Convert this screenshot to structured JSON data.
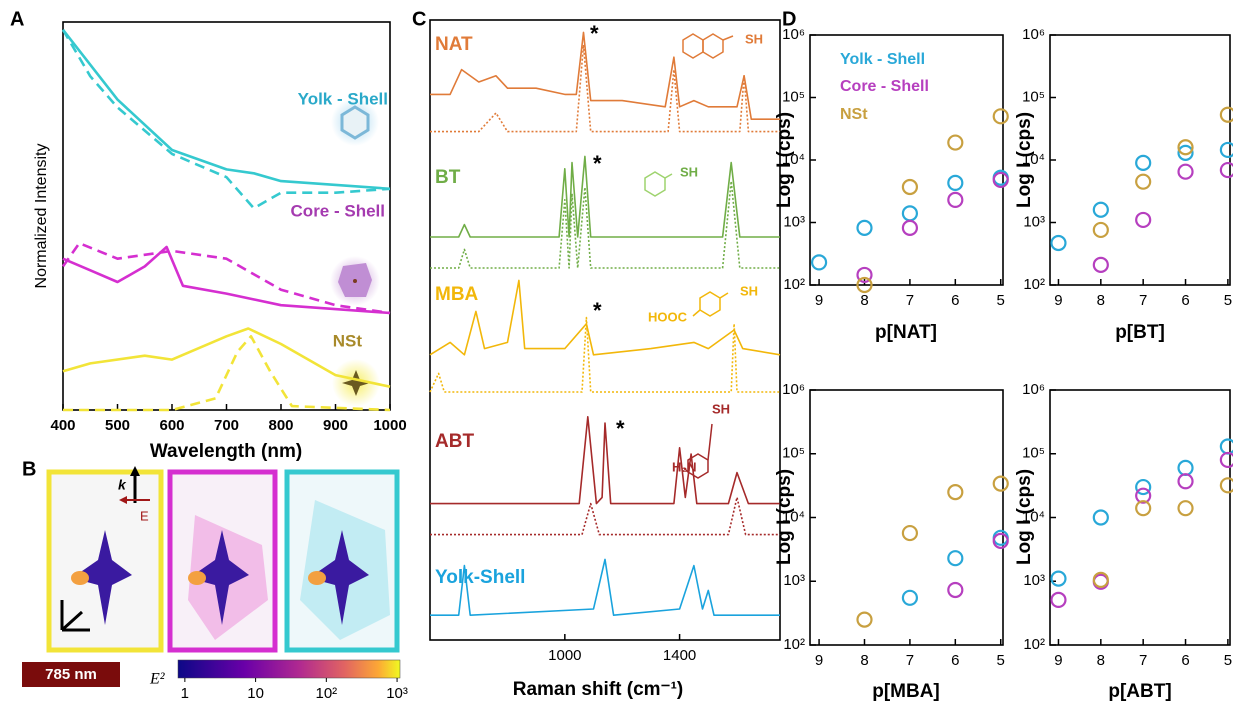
{
  "chart_data": [
    {
      "type": "line",
      "panel_label": "A",
      "xlabel": "Wavelength (nm)",
      "ylabel": "Normalized Intensity",
      "xlim": [
        400,
        1000
      ],
      "xticks": [
        400,
        500,
        600,
        700,
        800,
        900,
        1000
      ],
      "ylim": [
        0,
        100
      ],
      "annotations": [
        {
          "text": "Yolk - Shell",
          "color": "#2aa9c9"
        },
        {
          "text": "Core - Shell",
          "color": "#a53bb0"
        },
        {
          "text": "NSt",
          "color": "#a88a2a"
        }
      ],
      "series": [
        {
          "color": "#35c9cf",
          "dash": false,
          "x": [
            400,
            500,
            600,
            700,
            750,
            800,
            1000
          ],
          "values": [
            98,
            80,
            67,
            62,
            61,
            59,
            57
          ]
        },
        {
          "color": "#35c9cf",
          "dash": true,
          "x": [
            400,
            450,
            500,
            600,
            700,
            750,
            800,
            900,
            1000
          ],
          "values": [
            98,
            86,
            78,
            66,
            60,
            52,
            56,
            56,
            57
          ]
        },
        {
          "color": "#d52fd0",
          "dash": false,
          "x": [
            400,
            450,
            500,
            550,
            590,
            620,
            700,
            800,
            1000
          ],
          "values": [
            39,
            36,
            33,
            37,
            42,
            32,
            30,
            27,
            25
          ]
        },
        {
          "color": "#d52fd0",
          "dash": true,
          "x": [
            400,
            430,
            500,
            600,
            700,
            800,
            900,
            1000
          ],
          "values": [
            37,
            43,
            39,
            41,
            39,
            31,
            27,
            25
          ]
        },
        {
          "color": "#f2e438",
          "dash": false,
          "x": [
            400,
            450,
            550,
            600,
            700,
            740,
            800,
            900,
            1000
          ],
          "values": [
            10,
            12,
            14,
            13,
            19,
            21,
            17,
            9,
            6
          ]
        },
        {
          "color": "#f2e438",
          "dash": true,
          "x": [
            400,
            600,
            680,
            720,
            745,
            780,
            820,
            1000
          ],
          "values": [
            0,
            0,
            3,
            15,
            19,
            10,
            1,
            0
          ]
        }
      ]
    },
    {
      "type": "line",
      "panel_label": "C",
      "xlabel": "Raman shift (cm⁻¹)",
      "xlim": [
        530,
        1750
      ],
      "xticks": [
        1000,
        1400
      ],
      "ylim": [
        0,
        100
      ],
      "annotations": [
        "*",
        "*",
        "*",
        "*",
        "SH",
        "SH",
        "SH",
        "HOOC",
        "SH",
        "H₂N"
      ],
      "series": [
        {
          "name": "NAT",
          "color": "#e07b39",
          "dash": false,
          "x": [
            530,
            600,
            640,
            700,
            760,
            800,
            900,
            1000,
            1040,
            1065,
            1090,
            1200,
            1350,
            1380,
            1400,
            1450,
            1500,
            1580,
            1600,
            1625,
            1650,
            1750
          ],
          "values": [
            88,
            88,
            92,
            90,
            91,
            89,
            89,
            88,
            88,
            98,
            87,
            87,
            86,
            94,
            86,
            87,
            86,
            86,
            86,
            91,
            84,
            84
          ]
        },
        {
          "color": "#e07b39",
          "dash": true,
          "x": [
            530,
            700,
            760,
            800,
            1000,
            1040,
            1065,
            1090,
            1300,
            1360,
            1380,
            1400,
            1580,
            1610,
            1625,
            1640,
            1750
          ],
          "values": [
            82,
            82,
            85,
            82,
            82,
            82,
            96,
            82,
            82,
            82,
            92,
            82,
            82,
            82,
            91,
            82,
            82
          ]
        },
        {
          "name": "BT",
          "color": "#70ad47",
          "dash": false,
          "x": [
            530,
            630,
            650,
            670,
            980,
            1000,
            1015,
            1025,
            1045,
            1070,
            1090,
            1550,
            1580,
            1610,
            1750
          ],
          "values": [
            65,
            65,
            67,
            65,
            65,
            76,
            65,
            77,
            65,
            78,
            65,
            65,
            77,
            65,
            65
          ]
        },
        {
          "color": "#70ad47",
          "dash": true,
          "x": [
            530,
            630,
            650,
            670,
            980,
            1000,
            1015,
            1025,
            1045,
            1070,
            1090,
            1550,
            1580,
            1610,
            1750
          ],
          "values": [
            60,
            60,
            63,
            60,
            60,
            71,
            60,
            72,
            60,
            73,
            60,
            60,
            74,
            60,
            60
          ]
        },
        {
          "name": "MBA",
          "color": "#f2b70a",
          "dash": false,
          "x": [
            530,
            600,
            650,
            690,
            720,
            800,
            840,
            860,
            900,
            1000,
            1075,
            1100,
            1300,
            1450,
            1500,
            1590,
            1620,
            1750
          ],
          "values": [
            46,
            48,
            46,
            53,
            47,
            48,
            58,
            47,
            47,
            47,
            51,
            46,
            47,
            48,
            47,
            50,
            47,
            46
          ]
        },
        {
          "color": "#f2b70a",
          "dash": true,
          "x": [
            530,
            560,
            580,
            700,
            1060,
            1075,
            1090,
            1500,
            1580,
            1590,
            1600,
            1750
          ],
          "values": [
            40,
            43,
            40,
            40,
            40,
            52,
            40,
            40,
            40,
            51,
            40,
            40
          ]
        },
        {
          "name": "ABT",
          "color": "#a52a2a",
          "dash": false,
          "x": [
            530,
            900,
            1050,
            1080,
            1110,
            1130,
            1140,
            1160,
            1380,
            1400,
            1420,
            1440,
            1460,
            1570,
            1600,
            1640,
            1750
          ],
          "values": [
            22,
            22,
            22,
            36,
            22,
            23,
            35,
            22,
            22,
            31,
            23,
            30,
            22,
            22,
            27,
            22,
            22
          ]
        },
        {
          "color": "#a52a2a",
          "dash": true,
          "x": [
            530,
            1060,
            1090,
            1120,
            1570,
            1600,
            1630,
            1750
          ],
          "values": [
            17,
            17,
            22,
            17,
            17,
            23,
            17,
            17
          ]
        },
        {
          "name": "Yolk-Shell",
          "color": "#1aa3dd",
          "dash": false,
          "x": [
            530,
            630,
            650,
            670,
            1100,
            1140,
            1170,
            1400,
            1450,
            1480,
            1500,
            1520,
            1750
          ],
          "values": [
            4,
            4,
            12,
            4,
            5,
            13,
            4,
            5,
            12,
            5,
            8,
            4,
            4
          ]
        }
      ]
    },
    {
      "type": "scatter",
      "panel_label": "D",
      "xlabel": "p[NAT]",
      "ylabel": "Log I (cps)",
      "log_y": true,
      "xlim": [
        9.2,
        4.95
      ],
      "xticks": [
        9,
        8,
        7,
        6,
        5
      ],
      "ylim": [
        100,
        1000000
      ],
      "yticks": [
        {
          "value": 100,
          "label": "10²"
        },
        {
          "value": 1000,
          "label": "10³"
        },
        {
          "value": 10000,
          "label": "10⁴"
        },
        {
          "value": 100000,
          "label": "10⁵"
        },
        {
          "value": 1000000,
          "label": "10⁶"
        }
      ],
      "x": [
        9,
        8,
        7,
        6,
        5
      ],
      "series": [
        {
          "name": "Yolk - Shell",
          "color": "#29a8d8",
          "values": [
            230,
            820,
            1400,
            4300,
            5200
          ]
        },
        {
          "name": "Core - Shell",
          "color": "#b63fbf",
          "values": [
            null,
            145,
            820,
            2300,
            4800
          ]
        },
        {
          "name": "NSt",
          "color": "#c8a040",
          "values": [
            null,
            100,
            3700,
            19000,
            50000
          ]
        }
      ]
    },
    {
      "type": "scatter",
      "xlabel": "p[BT]",
      "ylabel": "Log I (cps)",
      "log_y": true,
      "xlim": [
        9.2,
        4.95
      ],
      "xticks": [
        9,
        8,
        7,
        6,
        5
      ],
      "ylim": [
        100,
        1000000
      ],
      "yticks": [
        {
          "value": 100,
          "label": "10²"
        },
        {
          "value": 1000,
          "label": "10³"
        },
        {
          "value": 10000,
          "label": "10⁴"
        },
        {
          "value": 100000,
          "label": "10⁵"
        },
        {
          "value": 1000000,
          "label": "10⁶"
        }
      ],
      "x": [
        9,
        8,
        7,
        6,
        5
      ],
      "series": [
        {
          "color": "#29a8d8",
          "values": [
            470,
            1600,
            9000,
            13000,
            14500
          ]
        },
        {
          "color": "#b63fbf",
          "values": [
            null,
            210,
            1100,
            6500,
            6900
          ]
        },
        {
          "color": "#c8a040",
          "values": [
            null,
            760,
            4500,
            16000,
            53000
          ]
        }
      ]
    },
    {
      "type": "scatter",
      "xlabel": "p[MBA]",
      "ylabel": "Log I (cps)",
      "log_y": true,
      "xlim": [
        9.2,
        4.95
      ],
      "xticks": [
        9,
        8,
        7,
        6,
        5
      ],
      "ylim": [
        100,
        1000000
      ],
      "yticks": [
        {
          "value": 100,
          "label": "10²"
        },
        {
          "value": 1000,
          "label": "10³"
        },
        {
          "value": 10000,
          "label": "10⁴"
        },
        {
          "value": 100000,
          "label": "10⁵"
        },
        {
          "value": 1000000,
          "label": "10⁶"
        }
      ],
      "x": [
        9,
        8,
        7,
        6,
        5
      ],
      "series": [
        {
          "color": "#29a8d8",
          "values": [
            null,
            null,
            550,
            2300,
            4800
          ]
        },
        {
          "color": "#b63fbf",
          "values": [
            null,
            null,
            null,
            730,
            4300
          ]
        },
        {
          "color": "#c8a040",
          "values": [
            null,
            250,
            5700,
            25000,
            34000
          ]
        }
      ]
    },
    {
      "type": "scatter",
      "xlabel": "p[ABT]",
      "ylabel": "Log I (cps)",
      "log_y": true,
      "xlim": [
        9.2,
        4.95
      ],
      "xticks": [
        9,
        8,
        7,
        6,
        5
      ],
      "ylim": [
        100,
        1000000
      ],
      "yticks": [
        {
          "value": 100,
          "label": "10²"
        },
        {
          "value": 1000,
          "label": "10³"
        },
        {
          "value": 10000,
          "label": "10⁴"
        },
        {
          "value": 100000,
          "label": "10⁵"
        },
        {
          "value": 1000000,
          "label": "10⁶"
        }
      ],
      "x": [
        9,
        8,
        7,
        6,
        5
      ],
      "series": [
        {
          "color": "#29a8d8",
          "values": [
            1100,
            10000,
            30000,
            60000,
            130000
          ]
        },
        {
          "color": "#b63fbf",
          "values": [
            510,
            980,
            22000,
            37000,
            80000
          ]
        },
        {
          "color": "#c8a040",
          "values": [
            null,
            1050,
            14000,
            14000,
            32000
          ]
        }
      ]
    }
  ],
  "panel_b": {
    "label": "B",
    "k": "k",
    "E": "E",
    "laser": "785 nm",
    "colorbar_label": "E²",
    "colorbar": {
      "lim": [
        0.8,
        1100
      ],
      "ticks": [
        1,
        10,
        {
          "value": 100,
          "label": "10²"
        },
        {
          "value": 1000,
          "label": "10³"
        }
      ]
    }
  }
}
